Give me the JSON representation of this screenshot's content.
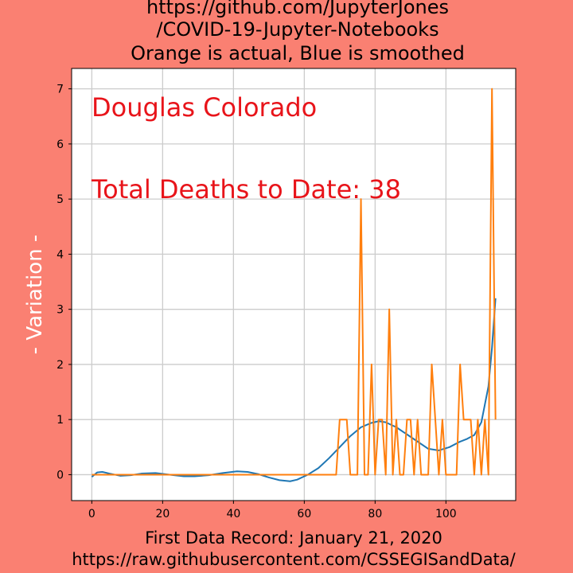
{
  "chart_data": {
    "type": "line",
    "title": [
      "https://github.com/JupyterJones",
      "/COVID-19-Jupyter-Notebooks",
      "Orange is actual, Blue is smoothed"
    ],
    "xlabel": [
      "First Data Record: January 21, 2020",
      "https://raw.githubusercontent.com/CSSEGISandData/"
    ],
    "ylabel": "- Variation -",
    "xlim": [
      -5.7,
      119.7
    ],
    "ylim": [
      -0.47,
      7.37
    ],
    "xticks": [
      0,
      20,
      40,
      60,
      80,
      100
    ],
    "yticks": [
      0,
      1,
      2,
      3,
      4,
      5,
      6,
      7
    ],
    "grid": true,
    "annotations": {
      "location": "Douglas Colorado",
      "total": "Total Deaths to Date: 38"
    },
    "colors": {
      "background": "#FA8072",
      "plot_area": "#ffffff",
      "actual": "#ff7f0e",
      "smoothed": "#1f77b4",
      "annotation": "#e8141a",
      "ylabel": "#ffffff"
    },
    "series": [
      {
        "key": "smoothed",
        "points": [
          [
            0,
            -0.04
          ],
          [
            1.5,
            0.04
          ],
          [
            3,
            0.05
          ],
          [
            5,
            0.02
          ],
          [
            8,
            -0.02
          ],
          [
            11,
            -0.01
          ],
          [
            14,
            0.02
          ],
          [
            18,
            0.03
          ],
          [
            22,
            0.0
          ],
          [
            26,
            -0.03
          ],
          [
            29,
            -0.03
          ],
          [
            33,
            -0.01
          ],
          [
            37,
            0.03
          ],
          [
            41,
            0.06
          ],
          [
            44,
            0.05
          ],
          [
            47,
            0.01
          ],
          [
            50,
            -0.05
          ],
          [
            53,
            -0.1
          ],
          [
            56,
            -0.12
          ],
          [
            58,
            -0.09
          ],
          [
            61,
            0.0
          ],
          [
            64,
            0.12
          ],
          [
            67,
            0.3
          ],
          [
            70,
            0.5
          ],
          [
            73,
            0.7
          ],
          [
            76,
            0.86
          ],
          [
            79,
            0.94
          ],
          [
            81,
            0.97
          ],
          [
            83,
            0.95
          ],
          [
            86,
            0.86
          ],
          [
            89,
            0.73
          ],
          [
            92,
            0.6
          ],
          [
            95,
            0.47
          ],
          [
            98,
            0.44
          ],
          [
            101,
            0.5
          ],
          [
            104,
            0.6
          ],
          [
            106,
            0.65
          ],
          [
            108,
            0.72
          ],
          [
            110,
            0.95
          ],
          [
            112,
            1.6
          ],
          [
            113,
            2.3
          ],
          [
            114,
            3.2
          ]
        ]
      },
      {
        "key": "actual",
        "points": [
          [
            0,
            0
          ],
          [
            69,
            0
          ],
          [
            70,
            1
          ],
          [
            71,
            1
          ],
          [
            72,
            1
          ],
          [
            73,
            0
          ],
          [
            74,
            0
          ],
          [
            75,
            0
          ],
          [
            76,
            5
          ],
          [
            77,
            0
          ],
          [
            78,
            0
          ],
          [
            79,
            2
          ],
          [
            80,
            0
          ],
          [
            81,
            1
          ],
          [
            82,
            1
          ],
          [
            83,
            0
          ],
          [
            84,
            3
          ],
          [
            85,
            0
          ],
          [
            86,
            1
          ],
          [
            87,
            0
          ],
          [
            88,
            0
          ],
          [
            89,
            1
          ],
          [
            90,
            1
          ],
          [
            91,
            0
          ],
          [
            92,
            1
          ],
          [
            93,
            0
          ],
          [
            94,
            0
          ],
          [
            95,
            0
          ],
          [
            96,
            2
          ],
          [
            97,
            1
          ],
          [
            98,
            0
          ],
          [
            99,
            1
          ],
          [
            100,
            0
          ],
          [
            101,
            0
          ],
          [
            102,
            0
          ],
          [
            103,
            0
          ],
          [
            104,
            2
          ],
          [
            105,
            1
          ],
          [
            106,
            1
          ],
          [
            107,
            1
          ],
          [
            108,
            0
          ],
          [
            109,
            1
          ],
          [
            110,
            0
          ],
          [
            111,
            1
          ],
          [
            112,
            0
          ],
          [
            113,
            7
          ],
          [
            114,
            1
          ]
        ]
      }
    ]
  }
}
